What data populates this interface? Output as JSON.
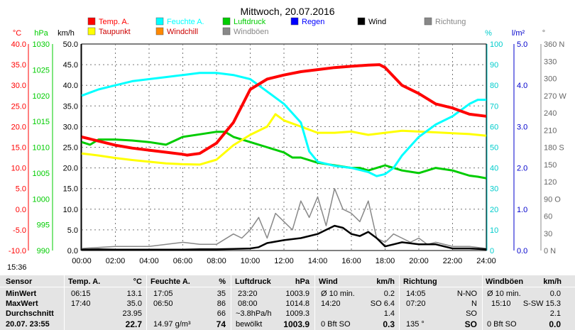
{
  "chart_data": {
    "type": "line",
    "title": "Mittwoch, 20.07.2016",
    "x_ticks": [
      "00:00",
      "02:00",
      "04:00",
      "06:00",
      "08:00",
      "10:00",
      "12:00",
      "14:00",
      "16:00",
      "18:00",
      "20:00",
      "22:00",
      "24:00"
    ],
    "axes": {
      "celsius": {
        "unit": "°C",
        "color": "#ff0000",
        "range": [
          -10,
          40
        ],
        "ticks": [
          "40.0",
          "35.0",
          "30.0",
          "25.0",
          "20.0",
          "15.0",
          "10.0",
          "5.0",
          "0.0",
          "-5.0",
          "-10.0"
        ]
      },
      "hpa": {
        "unit": "hPa",
        "color": "#00cc00",
        "range": [
          990,
          1030
        ],
        "ticks": [
          "1030",
          "1025",
          "1020",
          "1015",
          "1010",
          "1005",
          "1000",
          "995",
          "990"
        ]
      },
      "kmh": {
        "unit": "km/h",
        "color": "#000000",
        "range": [
          0,
          50
        ],
        "ticks": [
          "50.0",
          "45.0",
          "40.0",
          "35.0",
          "30.0",
          "25.0",
          "20.0",
          "15.0",
          "10.0",
          "5.0",
          "0.0"
        ]
      },
      "percent": {
        "unit": "%",
        "color": "#00cccc",
        "range": [
          0,
          100
        ],
        "ticks": [
          "100",
          "90",
          "80",
          "70",
          "60",
          "50",
          "40",
          "30",
          "20",
          "10",
          "0"
        ]
      },
      "rain": {
        "unit": "l/m²",
        "color": "#0000cc",
        "range": [
          0,
          5
        ],
        "ticks": [
          "5.0",
          "4.0",
          "3.0",
          "2.0",
          "1.0",
          "0.0"
        ]
      },
      "direction": {
        "unit": "°",
        "color": "#666666",
        "range": [
          0,
          360
        ],
        "ticks": [
          "360 N",
          "330",
          "300",
          "270 W",
          "240",
          "210",
          "180 S",
          "150",
          "120",
          "90 O",
          "60",
          "30",
          "0 N"
        ]
      }
    },
    "legend": [
      {
        "name": "Temp. A.",
        "color": "#ff0000"
      },
      {
        "name": "Feuchte A.",
        "color": "#00ffff"
      },
      {
        "name": "Luftdruck",
        "color": "#00cc00"
      },
      {
        "name": "Regen",
        "color": "#0000ff"
      },
      {
        "name": "Wind",
        "color": "#000000"
      },
      {
        "name": "Richtung",
        "color": "#888888"
      },
      {
        "name": "Taupunkt",
        "color": "#ffff00"
      },
      {
        "name": "Windchill",
        "color": "#ff8800"
      },
      {
        "name": "Windböen",
        "color": "#888888"
      }
    ],
    "series": [
      {
        "name": "Temp. A.",
        "axis": "celsius",
        "color": "#ff0000",
        "x": [
          0,
          1,
          2,
          3,
          4,
          5,
          6,
          6.25,
          7,
          8,
          9,
          10,
          11,
          12,
          13,
          14,
          15,
          16,
          17,
          17.67,
          18,
          19,
          20,
          21,
          22,
          23,
          24
        ],
        "y": [
          17.5,
          16.5,
          15.5,
          14.8,
          14.3,
          13.8,
          13.3,
          13.1,
          13.5,
          16,
          21,
          29,
          31.5,
          32.5,
          33.3,
          33.8,
          34.3,
          34.6,
          34.9,
          35.0,
          34.3,
          30,
          28,
          25.5,
          24.5,
          23,
          22.5
        ]
      },
      {
        "name": "Taupunkt",
        "axis": "celsius",
        "color": "#ffff00",
        "x": [
          0,
          1,
          2,
          3,
          4,
          5,
          6,
          7,
          8,
          9,
          10,
          11,
          11.5,
          12,
          13,
          14,
          15,
          16,
          17,
          18,
          19,
          20,
          21,
          22,
          23,
          24
        ],
        "y": [
          13.5,
          13,
          12.4,
          11.9,
          11.5,
          11.1,
          10.9,
          10.8,
          12,
          15.5,
          18,
          20,
          23,
          21.5,
          20,
          18.5,
          18.5,
          18.8,
          18,
          18.5,
          19,
          18.8,
          18.6,
          18.4,
          18.2,
          17.8
        ]
      },
      {
        "name": "Feuchte A.",
        "axis": "percent",
        "color": "#00ffff",
        "x": [
          0,
          1,
          2,
          3,
          4,
          5,
          6,
          7,
          8,
          9,
          10,
          11,
          12,
          13,
          13.5,
          14,
          15,
          16,
          17,
          17.5,
          18,
          18.5,
          19,
          20,
          21,
          22,
          23,
          23.5,
          24
        ],
        "y": [
          75,
          78,
          80,
          82,
          83,
          84,
          85,
          86,
          86,
          85,
          83,
          77,
          71,
          62,
          48,
          43,
          41,
          40,
          38,
          36,
          37,
          40,
          46,
          55,
          61,
          65,
          71,
          73,
          73
        ]
      },
      {
        "name": "Luftdruck",
        "axis": "hpa",
        "color": "#00cc00",
        "x": [
          0,
          0.5,
          1,
          2,
          3,
          4,
          5,
          6,
          7,
          8,
          8.5,
          9,
          10,
          11,
          12,
          12.5,
          13,
          14,
          15,
          16,
          16.5,
          17,
          18,
          19,
          20,
          21,
          22,
          23,
          23.5,
          24
        ],
        "y": [
          1011,
          1010.5,
          1011.5,
          1011.5,
          1011.3,
          1011,
          1010.5,
          1012,
          1012.5,
          1013,
          1013,
          1012,
          1011,
          1010,
          1009,
          1008,
          1008,
          1007,
          1006.5,
          1006,
          1006,
          1005.5,
          1006.5,
          1005.5,
          1005,
          1006,
          1005.5,
          1004.5,
          1004.3,
          1004
        ]
      },
      {
        "name": "Wind",
        "axis": "kmh",
        "color": "#000000",
        "x": [
          0,
          1,
          2,
          3,
          4,
          5,
          6,
          7,
          8,
          9,
          10,
          10.5,
          11,
          12,
          13,
          13.5,
          14,
          14.5,
          15,
          15.5,
          16,
          16.5,
          17,
          17.5,
          18,
          18.5,
          19,
          20,
          21,
          22,
          23,
          24
        ],
        "y": [
          0.2,
          0.3,
          0.2,
          0.2,
          0.2,
          0.2,
          0.2,
          0.3,
          0.3,
          0.4,
          0.5,
          0.8,
          1.8,
          2.5,
          3,
          3.5,
          4,
          5,
          6,
          5.5,
          4,
          3.5,
          4.5,
          3,
          1,
          1.5,
          2,
          1.5,
          1.5,
          0.5,
          0.5,
          0.3
        ]
      },
      {
        "name": "Windböen",
        "axis": "kmh",
        "color": "#888888",
        "x": [
          0,
          2,
          4,
          6,
          7,
          8,
          9,
          9.5,
          10,
          10.5,
          11,
          11.5,
          12,
          12.5,
          13,
          13.5,
          14,
          14.5,
          15,
          15.5,
          16,
          16.5,
          17,
          17.5,
          18,
          18.5,
          19,
          19.5,
          20,
          20.5,
          21,
          22,
          23,
          24
        ],
        "y": [
          0.5,
          1,
          1,
          2,
          1.5,
          1.5,
          4,
          3,
          5,
          8,
          3,
          9,
          7,
          5,
          12,
          8,
          13,
          6,
          15,
          10,
          9,
          7,
          12,
          3,
          2,
          4,
          3,
          2,
          3,
          1.5,
          2,
          1,
          1,
          0.5
        ]
      }
    ]
  },
  "stats": {
    "headers": {
      "sensor": "Sensor",
      "temp": "Temp. A.",
      "temp_unit": "°C",
      "humid": "Feuchte A.",
      "humid_unit": "%",
      "press": "Luftdruck",
      "press_unit": "hPa",
      "wind": "Wind",
      "wind_unit": "km/h",
      "dir": "Richtung",
      "gust": "Windböen",
      "gust_unit": "km/h"
    },
    "rows": {
      "min": {
        "label": "MinWert",
        "temp_time": "06:15",
        "temp_val": "13.1",
        "humid_time": "17:05",
        "humid_val": "35",
        "press_time": "23:20",
        "press_val": "1003.9",
        "wind_time": "Ø 10 min.",
        "wind_val": "0.2",
        "dir_time": "14:05",
        "dir_val": "N-NO",
        "gust_time": "Ø 10 min.",
        "gust_val": "0.0"
      },
      "max": {
        "label": "MaxWert",
        "temp_time": "17:40",
        "temp_val": "35.0",
        "humid_time": "06:50",
        "humid_val": "86",
        "press_time": "08:00",
        "press_val": "1014.8",
        "wind_time": "14:20",
        "wind_val": "SO 6.4",
        "dir_time": "07:20",
        "dir_val": "N",
        "gust_time": "15:10",
        "gust_val": "S-SW 15.3"
      },
      "avg": {
        "label": "Durchschnitt",
        "temp_val": "23.95",
        "humid_val": "66",
        "press_time": "~3.8hPa/h",
        "press_val": "1009.3",
        "wind_val": "1.4",
        "dir_val": "SO",
        "gust_val": "2.1"
      },
      "cur": {
        "label": "20.07. 23:55",
        "temp_val": "22.7",
        "humid_time": "14.97 g/m³",
        "humid_val": "74",
        "press_time": "bewölkt",
        "press_val": "1003.9",
        "wind_time": "0 Bft SO",
        "wind_val": "0.3",
        "dir_time": "135 °",
        "dir_val": "SO",
        "gust_time": "0 Bft SO",
        "gust_val": "0.0"
      }
    }
  },
  "sun": {
    "rise": "15:36"
  }
}
